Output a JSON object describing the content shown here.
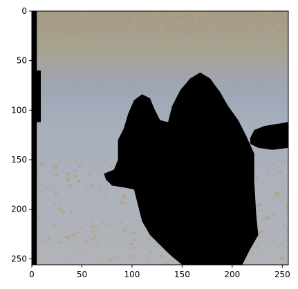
{
  "chart_data": {
    "type": "heatmap",
    "title": "",
    "xlabel": "",
    "ylabel": "",
    "xlim": [
      0,
      256
    ],
    "ylim": [
      256,
      0
    ],
    "x_ticks": [
      0,
      50,
      100,
      150,
      200,
      250
    ],
    "y_ticks": [
      0,
      50,
      100,
      150,
      200,
      250
    ],
    "x_tick_labels": [
      "0",
      "50",
      "100",
      "150",
      "200",
      "250"
    ],
    "y_tick_labels": [
      "0",
      "50",
      "100",
      "150",
      "200",
      "250"
    ],
    "image_description_colors": {
      "top_band": "#a59b83",
      "mid_band": "#9ea6b6",
      "lower_area": "#aeb3bd",
      "sand_patches": "#b79c6a",
      "mask": "#000000"
    },
    "masked_regions": [
      {
        "name": "main-silhouette",
        "polygon": [
          [
            168,
            62
          ],
          [
            178,
            68
          ],
          [
            188,
            82
          ],
          [
            196,
            96
          ],
          [
            206,
            110
          ],
          [
            214,
            126
          ],
          [
            222,
            144
          ],
          [
            222,
            172
          ],
          [
            224,
            206
          ],
          [
            226,
            226
          ],
          [
            218,
            240
          ],
          [
            210,
            256
          ],
          [
            150,
            256
          ],
          [
            138,
            246
          ],
          [
            128,
            236
          ],
          [
            118,
            226
          ],
          [
            110,
            212
          ],
          [
            106,
            196
          ],
          [
            102,
            180
          ],
          [
            92,
            178
          ],
          [
            80,
            176
          ],
          [
            74,
            170
          ],
          [
            72,
            164
          ],
          [
            82,
            160
          ],
          [
            86,
            150
          ],
          [
            86,
            130
          ],
          [
            92,
            118
          ],
          [
            96,
            104
          ],
          [
            102,
            90
          ],
          [
            110,
            84
          ],
          [
            118,
            88
          ],
          [
            122,
            98
          ],
          [
            128,
            110
          ],
          [
            136,
            112
          ],
          [
            140,
            96
          ],
          [
            148,
            80
          ],
          [
            158,
            68
          ]
        ]
      },
      {
        "name": "left-edge-strip",
        "polygon": [
          [
            0,
            0
          ],
          [
            5,
            0
          ],
          [
            5,
            60
          ],
          [
            9,
            60
          ],
          [
            9,
            112
          ],
          [
            5,
            112
          ],
          [
            5,
            256
          ],
          [
            0,
            256
          ]
        ]
      },
      {
        "name": "right-blob",
        "polygon": [
          [
            218,
            128
          ],
          [
            222,
            120
          ],
          [
            232,
            116
          ],
          [
            244,
            114
          ],
          [
            256,
            112
          ],
          [
            256,
            138
          ],
          [
            240,
            140
          ],
          [
            226,
            138
          ],
          [
            218,
            134
          ]
        ]
      }
    ]
  }
}
